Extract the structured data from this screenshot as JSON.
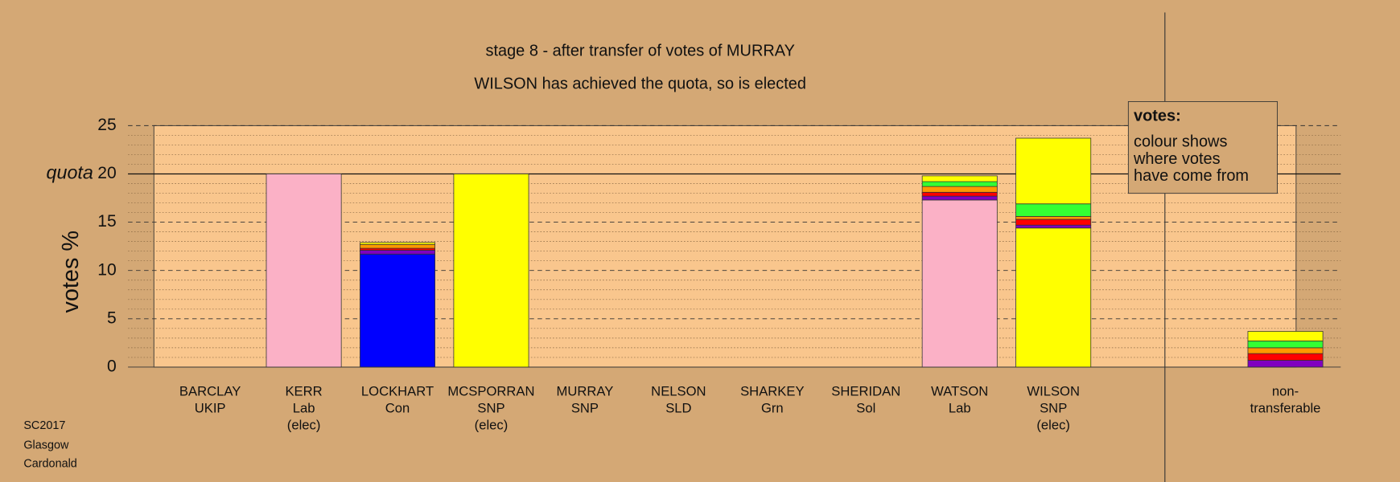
{
  "chart_data": {
    "type": "bar",
    "stacked": true,
    "title": "stage 8 - after transfer of votes of MURRAY",
    "subtitle": "WILSON has achieved the quota, so is elected",
    "ylabel": "votes %",
    "ylim": [
      0,
      25
    ],
    "yticks": [
      0,
      5,
      10,
      15,
      20,
      25
    ],
    "grid": true,
    "quota": {
      "value": 20,
      "label": "quota"
    },
    "categories": [
      [
        "BARCLAY",
        "UKIP"
      ],
      [
        "KERR",
        "Lab",
        "(elec)"
      ],
      [
        "LOCKHART",
        "Con"
      ],
      [
        "MCSPORRAN",
        "SNP",
        "(elec)"
      ],
      [
        "MURRAY",
        "SNP"
      ],
      [
        "NELSON",
        "SLD"
      ],
      [
        "SHARKEY",
        "Grn"
      ],
      [
        "SHERIDAN",
        "Sol"
      ],
      [
        "WATSON",
        "Lab"
      ],
      [
        "WILSON",
        "SNP",
        "(elec)"
      ],
      [
        "non-",
        "transferable"
      ]
    ],
    "series": [
      {
        "color": "#fbb1c6",
        "values": [
          0,
          20,
          0,
          0,
          0,
          0,
          0,
          0,
          17.3,
          0,
          0
        ]
      },
      {
        "color": "#0000ff",
        "values": [
          0,
          0,
          11.7,
          0,
          0,
          0,
          0,
          0,
          0,
          0,
          0
        ]
      },
      {
        "color": "#ffff00",
        "values": [
          0,
          0,
          0,
          20,
          0,
          0,
          0,
          0,
          0,
          14.4,
          0
        ]
      },
      {
        "color": "#8000c0",
        "values": [
          0,
          0,
          0.4,
          0,
          0,
          0,
          0,
          0,
          0.4,
          0.3,
          0.7
        ]
      },
      {
        "color": "#ff0000",
        "values": [
          0,
          0,
          0.2,
          0,
          0,
          0,
          0,
          0,
          0.4,
          0.6,
          0.7
        ]
      },
      {
        "color": "#ff9900",
        "values": [
          0,
          0,
          0.4,
          0,
          0,
          0,
          0,
          0,
          0.6,
          0.3,
          0.6
        ]
      },
      {
        "color": "#33ff33",
        "values": [
          0,
          0,
          0,
          0,
          0,
          0,
          0,
          0,
          0.5,
          1.3,
          0.7
        ]
      },
      {
        "color": "#ffff00",
        "values": [
          0,
          0,
          0.2,
          0,
          0,
          0,
          0,
          0,
          0.6,
          6.8,
          1.0
        ]
      }
    ],
    "annotation": {
      "heading": "votes:",
      "lines": [
        "colour shows",
        "where votes",
        "have come from"
      ]
    }
  },
  "footer": [
    "SC2017",
    "Glasgow",
    "Cardonald"
  ]
}
